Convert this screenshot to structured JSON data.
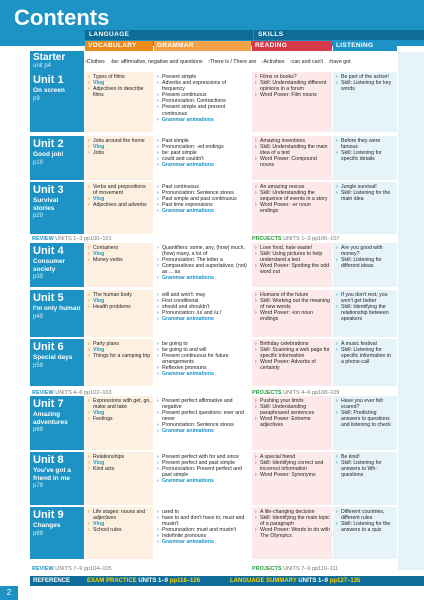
{
  "page_title": "Contents",
  "page_number": "2",
  "header": {
    "language": "LANGUAGE",
    "skills": "SKILLS",
    "vocabulary": "VOCABULARY",
    "grammar": "GRAMMAR",
    "reading": "READING",
    "listening": "LISTENING"
  },
  "colors": {
    "blue": "#1c93c4",
    "dark_blue": "#0e6d98",
    "orange": "#e98a1a",
    "green": "#2a9d3c",
    "red": "#d63a4a"
  },
  "starter": {
    "title": "Starter",
    "page": "unit p4",
    "items": [
      "Clothes",
      "be: affirmative, negative and questions",
      "There is / There are",
      "Activities",
      "can and can't",
      "have got"
    ]
  },
  "units": [
    {
      "unit": "Unit 1",
      "title": "On screen",
      "page": "p9",
      "vocab": [
        "Types of films",
        "Vlog",
        "Adjectives to describe films"
      ],
      "grammar": [
        "Present simple",
        "Adverbs and expressions of frequency",
        "Present continuous",
        "Pronunciation: Contractions",
        "Present simple and present continuous",
        "Grammar animations"
      ],
      "reading": [
        "Films or books?",
        "Skill: Understanding different opinions in a forum",
        "Word Power: Film nouns"
      ],
      "listening": [
        "Be part of the action!",
        "Skill: Listening for key words"
      ]
    },
    {
      "unit": "Unit 2",
      "title": "Good job!",
      "page": "p19",
      "vocab": [
        "Jobs around the home",
        "Vlog",
        "Jobs"
      ],
      "grammar": [
        "Past simple",
        "Pronunciation: -ed endings",
        "be: past simple",
        "could and couldn't",
        "Grammar animations"
      ],
      "reading": [
        "Amazing inventions",
        "Skill: Understanding the main idea of a text",
        "Word Power: Compound nouns"
      ],
      "listening": [
        "Before they were famous",
        "Skill: Listening for specific details"
      ]
    },
    {
      "unit": "Unit 3",
      "title": "Survival stories",
      "page": "p29",
      "vocab": [
        "Verbs and prepositions of movement",
        "Vlog",
        "Adjectives and adverbs"
      ],
      "grammar": [
        "Past continuous",
        "Pronunciation: Sentence stress",
        "Past simple and past continuous",
        "Past time expressions",
        "Grammar animations"
      ],
      "reading": [
        "An amazing rescue",
        "Skill: Understanding the sequence of events in a story",
        "Word Power: -er noun endings"
      ],
      "listening": [
        "Jungle survival!",
        "Skill: Listening for the main idea"
      ]
    },
    {
      "unit": "Unit 4",
      "title": "Consumer society",
      "page": "p39",
      "vocab": [
        "Containers",
        "Vlog",
        "Money verbs"
      ],
      "grammar": [
        "Quantifiers: some, any, (how) much, (how) many, a lot of",
        "Pronunciation: The letter a",
        "Comparatives and superlatives; (not) as ... as",
        "Grammar animations"
      ],
      "reading": [
        "Love food, hate waste!",
        "Skill: Using pictures to help understand a text",
        "Word Power: Spotting the odd word out"
      ],
      "listening": [
        "Are you good with money?",
        "Skill: Listening for different ideas"
      ]
    },
    {
      "unit": "Unit 5",
      "title": "I'm only human",
      "page": "p49",
      "vocab": [
        "The human body",
        "Vlog",
        "Health problems"
      ],
      "grammar": [
        "will and won't: may",
        "First conditional",
        "should and shouldn't",
        "Pronunciation: /u/ and /u:/",
        "Grammar animations"
      ],
      "reading": [
        "Humans of the future",
        "Skill: Working out the meaning of new words",
        "Word Power: -ion noun endings"
      ],
      "listening": [
        "If you don't rest, you won't get better",
        "Skill: Identifying the relationship between speakers"
      ]
    },
    {
      "unit": "Unit 6",
      "title": "Special days",
      "page": "p59",
      "vocab": [
        "Party plans",
        "Vlog",
        "Things for a camping trip"
      ],
      "grammar": [
        "be going to",
        "be going to and will",
        "Present continuous for future arrangements",
        "Reflexive pronouns",
        "Grammar animations"
      ],
      "reading": [
        "Birthday celebrations",
        "Skill: Scanning a web page for specific information",
        "Word Power: Adverbs of certainty"
      ],
      "listening": [
        "A music festival",
        "Skill: Listening for specific information in a phone-call"
      ]
    },
    {
      "unit": "Unit 7",
      "title": "Amazing adventures",
      "page": "p69",
      "vocab": [
        "Expressions with get, go, make and take",
        "Vlog",
        "Feelings"
      ],
      "grammar": [
        "Present perfect affirmative and negative",
        "Present perfect questions: ever and never",
        "Pronunciation: Sentence stress",
        "Grammar animations"
      ],
      "reading": [
        "Pushing your limits",
        "Skill: Understanding paraphrased sentences",
        "Word Power: Extreme adjectives"
      ],
      "listening": [
        "Have you ever felt scared?",
        "Skill: Predicting answers to questions and listening to check"
      ]
    },
    {
      "unit": "Unit 8",
      "title": "You've got a friend in me",
      "page": "p79",
      "vocab": [
        "Relationships",
        "Vlog",
        "Kind acts"
      ],
      "grammar": [
        "Present perfect with for and since",
        "Present perfect and past simple",
        "Pronunciation: Present perfect and past simple",
        "Grammar animations"
      ],
      "reading": [
        "A special friend",
        "Skill: Identifying correct and incorrect information",
        "Word Power: Synonyms"
      ],
      "listening": [
        "Be kind!",
        "Skill: Listening for answers to Wh- questions"
      ]
    },
    {
      "unit": "Unit 9",
      "title": "Changes",
      "page": "p89",
      "vocab": [
        "Life stages: nouns and adjectives",
        "Vlog",
        "School rules"
      ],
      "grammar": [
        "used to",
        "have to and don't have to; must and mustn't",
        "Pronunciation: must and mustn't",
        "Indefinite pronouns",
        "Grammar animations"
      ],
      "reading": [
        "A life-changing decision",
        "Skill: Identifying the main topic of a paragraph",
        "Word Power: Words to do with The Olympics"
      ],
      "listening": [
        "Different countries, different rules",
        "Skill: Listening for the answers to a quiz"
      ]
    }
  ],
  "reviews": [
    {
      "label": "REVIEW",
      "units": "UNITS 1–3",
      "pages": "pp100–101",
      "projects_label": "PROJECTS",
      "projects_units": "UNITS 1–3",
      "projects_pages": "pp106–107"
    },
    {
      "label": "REVIEW",
      "units": "UNITS 4–6",
      "pages": "pp102–103",
      "projects_label": "PROJECTS",
      "projects_units": "UNITS 4–6",
      "projects_pages": "pp108–109"
    },
    {
      "label": "REVIEW",
      "units": "UNITS 7–9",
      "pages": "pp104–105",
      "projects_label": "PROJECTS",
      "projects_units": "UNITS 7–9",
      "projects_pages": "pp110–111"
    }
  ],
  "bottom": {
    "reference": "REFERENCE",
    "exam_practice": "EXAM PRACTICE",
    "exam_units": "UNITS 1–9",
    "exam_pages": "pp118–126",
    "language_summary": "LANGUAGE SUMMARY",
    "lang_units": "UNITS 1–9",
    "lang_pages": "pp127–135"
  }
}
